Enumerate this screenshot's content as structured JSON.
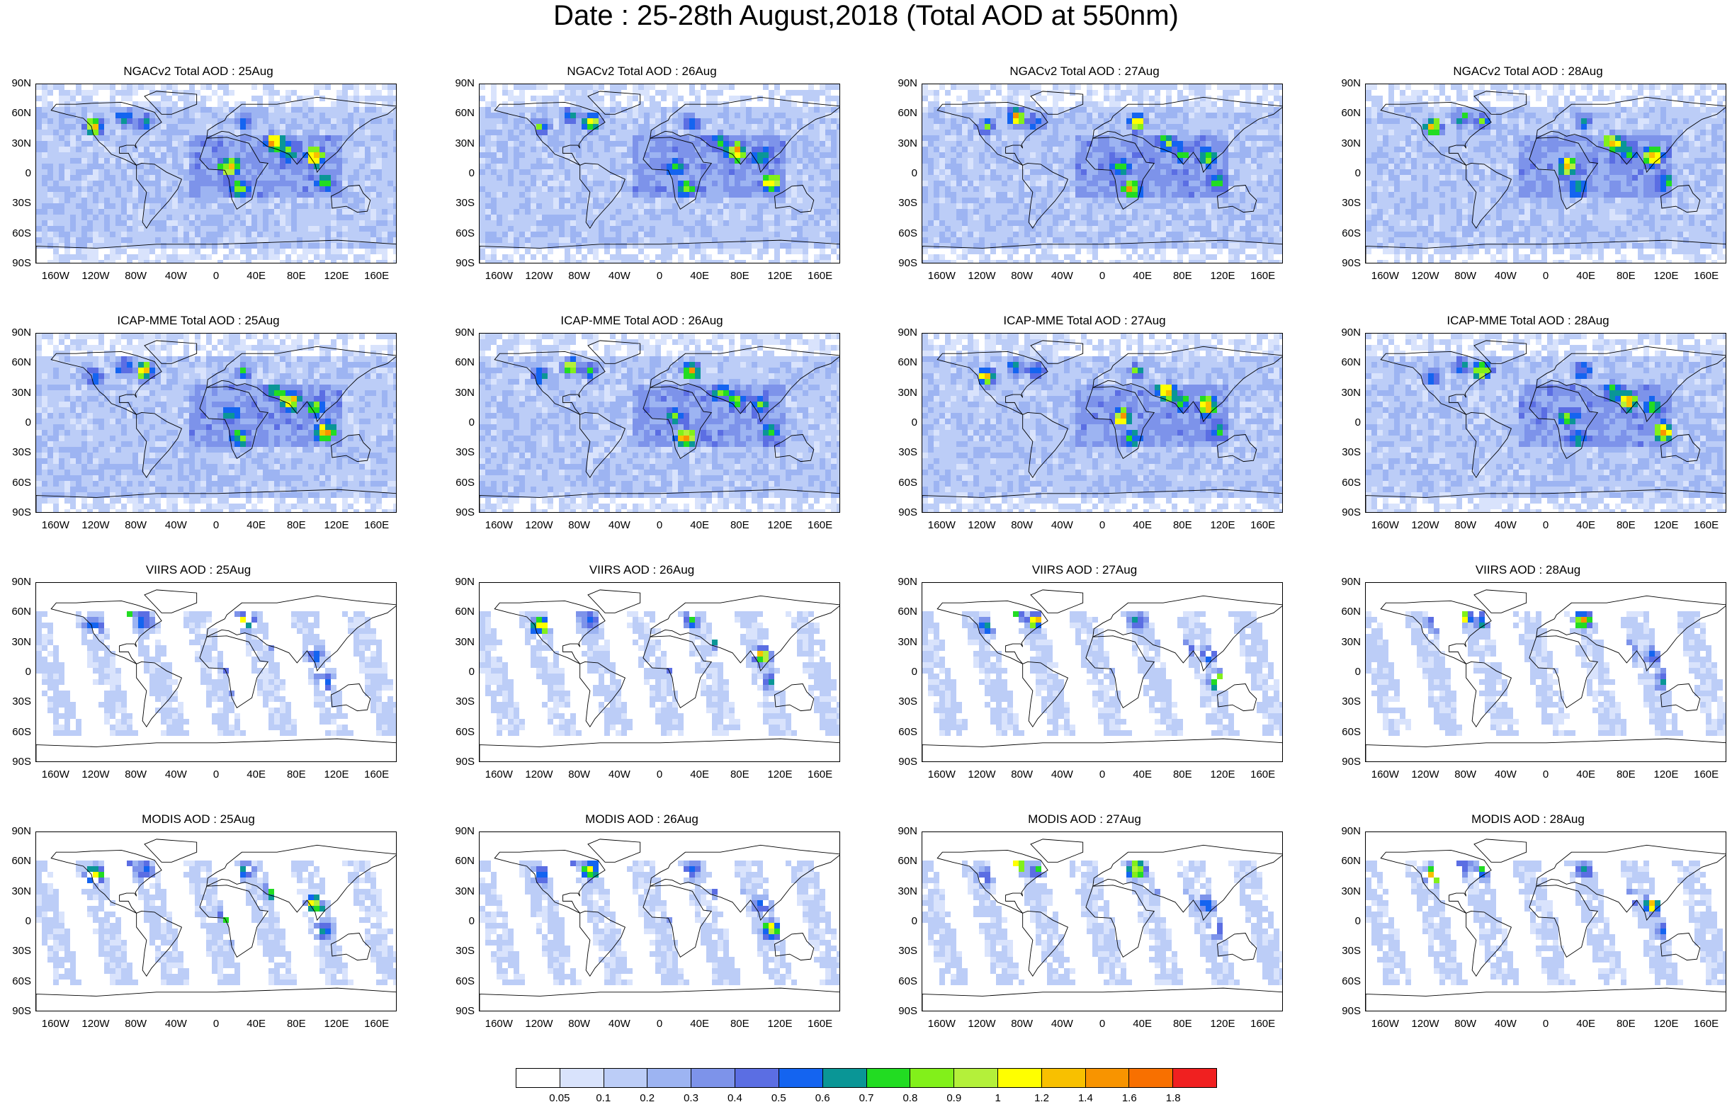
{
  "title": "Date : 25-28th August,2018 (Total AOD at 550nm)",
  "lat_ticks": [
    "90N",
    "60N",
    "30N",
    "0",
    "30S",
    "60S",
    "90S"
  ],
  "lon_ticks": [
    "160W",
    "120W",
    "80W",
    "40W",
    "0",
    "40E",
    "80E",
    "120E",
    "160E"
  ],
  "rows": [
    {
      "name": "NGACv2 Total AOD",
      "kind": "model",
      "panels": [
        "NGACv2 Total AOD : 25Aug",
        "NGACv2 Total AOD : 26Aug",
        "NGACv2 Total AOD : 27Aug",
        "NGACv2 Total AOD : 28Aug"
      ]
    },
    {
      "name": "ICAP-MME Total AOD",
      "kind": "model",
      "panels": [
        "ICAP-MME Total AOD : 25Aug",
        "ICAP-MME Total AOD : 26Aug",
        "ICAP-MME Total AOD : 27Aug",
        "ICAP-MME Total AOD : 28Aug"
      ]
    },
    {
      "name": "VIIRS AOD",
      "kind": "satellite",
      "panels": [
        "VIIRS AOD : 25Aug",
        "VIIRS AOD : 26Aug",
        "VIIRS AOD : 27Aug",
        "VIIRS AOD : 28Aug"
      ]
    },
    {
      "name": "MODIS AOD",
      "kind": "satellite",
      "panels": [
        "MODIS AOD : 25Aug",
        "MODIS AOD : 26Aug",
        "MODIS AOD : 27Aug",
        "MODIS AOD : 28Aug"
      ]
    }
  ],
  "colorbar": {
    "labels": [
      "0.05",
      "0.1",
      "0.2",
      "0.3",
      "0.4",
      "0.5",
      "0.6",
      "0.7",
      "0.8",
      "0.9",
      "1",
      "1.2",
      "1.4",
      "1.6",
      "1.8"
    ],
    "colors": [
      "#ffffff",
      "#d9e3fc",
      "#bccdf7",
      "#9db4f2",
      "#7d93ea",
      "#5b6ee3",
      "#1464f0",
      "#0a9696",
      "#22dc22",
      "#82f01a",
      "#b4f03a",
      "#ffff00",
      "#f8c000",
      "#f89400",
      "#f87000",
      "#f02020"
    ]
  }
}
